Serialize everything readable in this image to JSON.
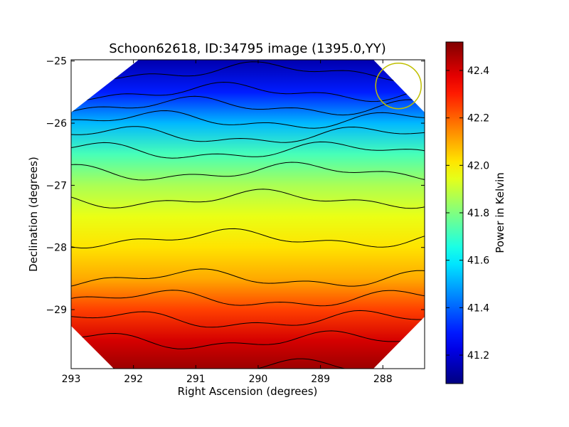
{
  "chart_data": {
    "type": "heatmap",
    "title": "Schoon62618, ID:34795 image (1395.0,YY)",
    "xlabel": "Right Ascension (degrees)",
    "ylabel": "Declination (degrees)",
    "xlim": [
      293.0,
      287.33
    ],
    "ylim": [
      -29.95,
      -24.98
    ],
    "xticks": [
      293,
      292,
      291,
      290,
      289,
      288
    ],
    "xtick_labels": [
      "293",
      "292",
      "291",
      "290",
      "289",
      "288"
    ],
    "yticks": [
      -25,
      -26,
      -27,
      -28,
      -29
    ],
    "ytick_labels": [
      "−25",
      "−26",
      "−27",
      "−28",
      "−29"
    ],
    "colorbar": {
      "label": "Power in Kelvin",
      "range": [
        41.08,
        42.52
      ],
      "ticks": [
        41.2,
        41.4,
        41.6,
        41.8,
        42.0,
        42.2,
        42.4
      ],
      "tick_labels": [
        "41.2",
        "41.4",
        "41.6",
        "41.8",
        "42.0",
        "42.2",
        "42.4"
      ],
      "colormap": "jet"
    },
    "field_profile": {
      "dec": [
        -25.0,
        -25.5,
        -26.0,
        -26.5,
        -27.0,
        -27.5,
        -28.0,
        -28.5,
        -29.0,
        -29.5,
        -29.95
      ],
      "power": [
        41.15,
        41.3,
        41.52,
        41.72,
        41.86,
        41.95,
        42.02,
        42.1,
        42.25,
        42.4,
        42.48
      ]
    },
    "contour_levels": [
      41.2,
      41.3,
      41.4,
      41.5,
      41.6,
      41.7,
      41.8,
      41.9,
      42.0,
      42.1,
      42.2,
      42.3,
      42.4,
      42.5
    ],
    "beam_marker": {
      "ra": 287.75,
      "dec": -25.4,
      "color": "#bfbf00"
    },
    "mask": "octagon",
    "grid": false
  }
}
